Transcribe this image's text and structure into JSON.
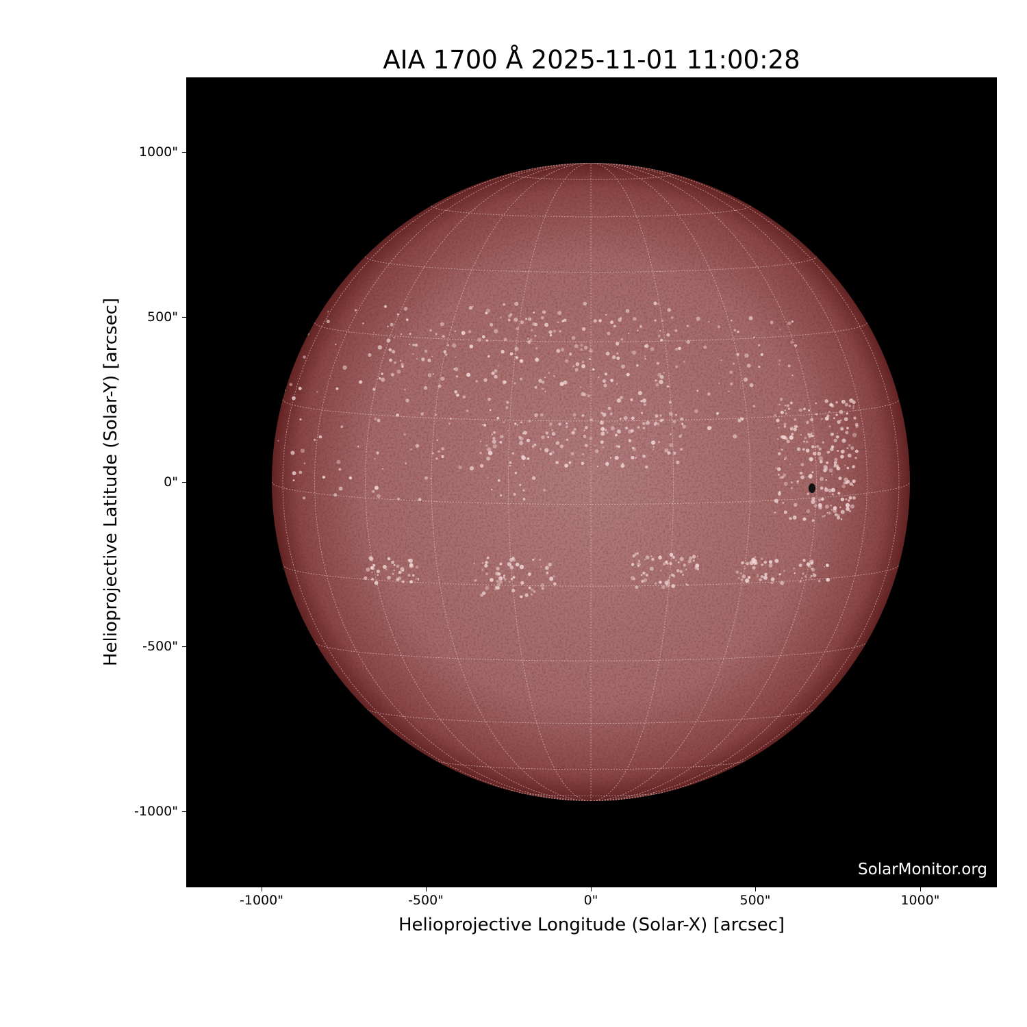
{
  "title": "AIA 1700 Å 2025-11-01 11:00:28",
  "x_axis": {
    "label": "Helioprojective Longitude (Solar-X) [arcsec]",
    "ticks": [
      "-1000\"",
      "-500\"",
      "0\"",
      "500\"",
      "1000\""
    ],
    "tick_values": [
      -1000,
      -500,
      0,
      500,
      1000
    ]
  },
  "y_axis": {
    "label": "Helioprojective Latitude (Solar-Y) [arcsec]",
    "ticks": [
      "1000\"",
      "500\"",
      "0\"",
      "-500\"",
      "-1000\""
    ],
    "tick_values": [
      1000,
      500,
      0,
      -500,
      -1000
    ]
  },
  "watermark": "SolarMonitor.org",
  "image": {
    "subject": "solar disk",
    "colormap": "sdoaia1700",
    "background": "#000000",
    "disk_center_color": "#b07a7a",
    "limb_color": "#6e2a2a",
    "grid": "heliographic"
  }
}
